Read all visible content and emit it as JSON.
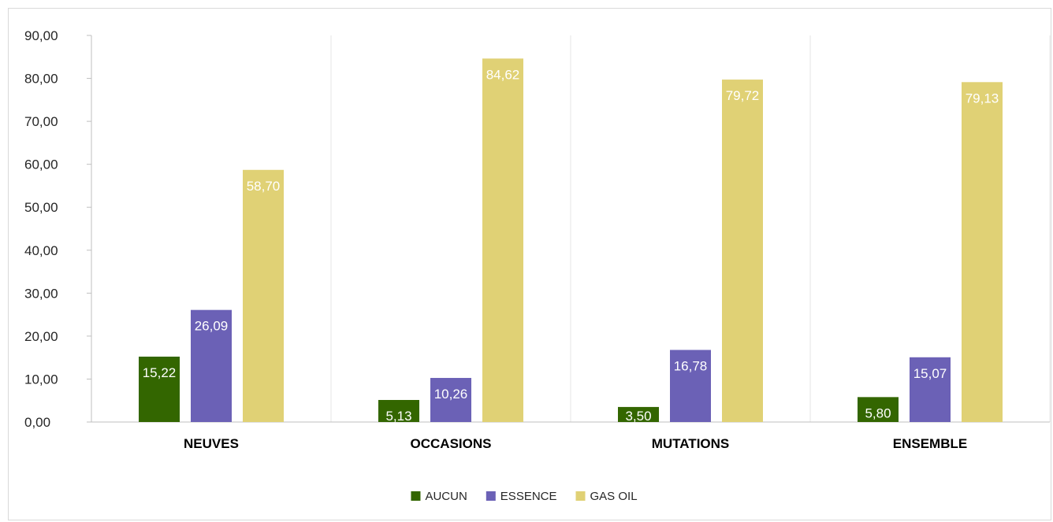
{
  "chart_data": {
    "type": "bar",
    "categories": [
      "NEUVES",
      "OCCASIONS",
      "MUTATIONS",
      "ENSEMBLE"
    ],
    "series": [
      {
        "name": "AUCUN",
        "color": "#336600",
        "values": [
          15.22,
          5.13,
          3.5,
          5.8
        ]
      },
      {
        "name": "ESSENCE",
        "color": "#6b61b6",
        "values": [
          26.09,
          10.26,
          16.78,
          15.07
        ]
      },
      {
        "name": "GAS OIL",
        "color": "#e0d175",
        "values": [
          58.7,
          84.62,
          79.72,
          79.13
        ]
      }
    ],
    "title": "",
    "xlabel": "",
    "ylabel": "",
    "ylim": [
      0,
      90
    ],
    "ytick_step": 10,
    "ytick_labels": [
      "0,00",
      "10,00",
      "20,00",
      "30,00",
      "40,00",
      "50,00",
      "60,00",
      "70,00",
      "80,00",
      "90,00"
    ],
    "data_labels": [
      [
        "15,22",
        "5,13",
        "3,50",
        "5,80"
      ],
      [
        "26,09",
        "10,26",
        "16,78",
        "15,07"
      ],
      [
        "58,70",
        "84,62",
        "79,72",
        "79,13"
      ]
    ],
    "grid": {
      "vertical": true,
      "horizontal": false
    },
    "legend_position": "bottom"
  }
}
